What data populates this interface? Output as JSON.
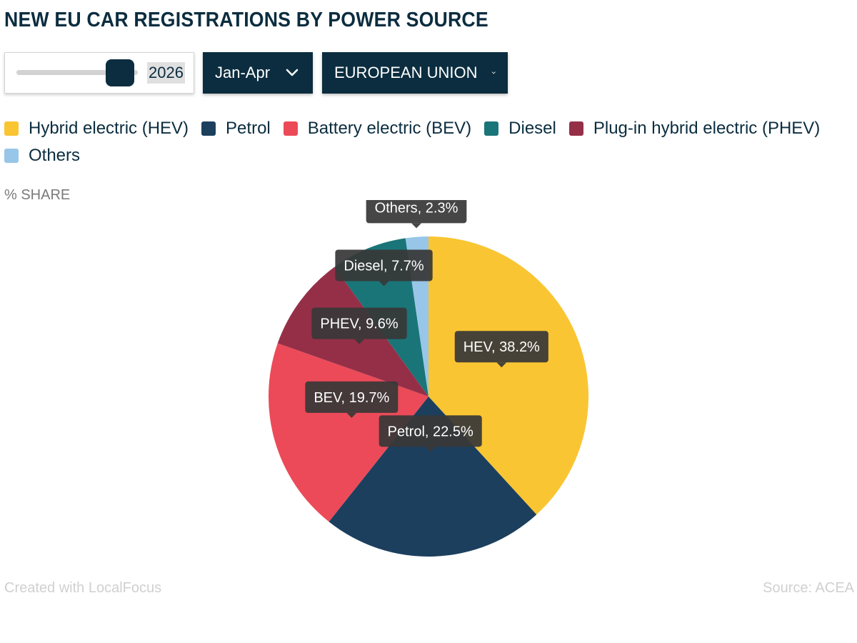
{
  "header": {
    "title": "NEW EU CAR REGISTRATIONS BY POWER SOURCE"
  },
  "controls": {
    "year_value": "2026",
    "period_label": "Jan-Apr",
    "region_label": "EUROPEAN UNION",
    "year_slider_fraction": 0.85
  },
  "legend": [
    {
      "label": "Hybrid electric (HEV)",
      "color": "#f9c532"
    },
    {
      "label": "Petrol",
      "color": "#1c3f5e"
    },
    {
      "label": "Battery electric (BEV)",
      "color": "#ec4a58"
    },
    {
      "label": "Diesel",
      "color": "#1a7578"
    },
    {
      "label": "Plug-in hybrid electric (PHEV)",
      "color": "#952f47"
    },
    {
      "label": "Others",
      "color": "#98c6e8"
    }
  ],
  "axis_note": "% SHARE",
  "chart_data": {
    "type": "pie",
    "title": "NEW EU CAR REGISTRATIONS BY POWER SOURCE",
    "unit": "%",
    "slices": [
      {
        "name": "HEV",
        "value": 38.2,
        "color": "#f9c532",
        "label": "HEV, 38.2%"
      },
      {
        "name": "Petrol",
        "value": 22.5,
        "color": "#1c3f5e",
        "label": "Petrol, 22.5%"
      },
      {
        "name": "BEV",
        "value": 19.7,
        "color": "#ec4a58",
        "label": "BEV, 19.7%"
      },
      {
        "name": "PHEV",
        "value": 9.6,
        "color": "#952f47",
        "label": "PHEV, 9.6%"
      },
      {
        "name": "Diesel",
        "value": 7.7,
        "color": "#1a7578",
        "label": "Diesel, 7.7%"
      },
      {
        "name": "Others",
        "value": 2.3,
        "color": "#98c6e8",
        "label": "Others, 2.3%"
      }
    ]
  },
  "footer": {
    "credit": "Created with LocalFocus",
    "source": "Source:  ACEA"
  }
}
